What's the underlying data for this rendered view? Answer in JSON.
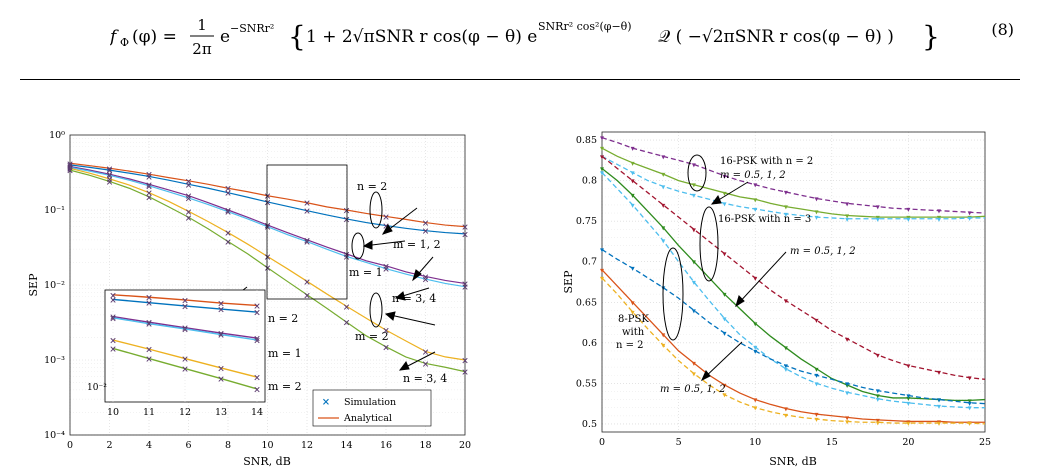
{
  "equation": {
    "number": "(8)",
    "lhs": "f",
    "lhs_sub": "Φ",
    "lhs_arg": "(φ) =",
    "frac_num": "1",
    "frac_den": "2π",
    "exp_e": "e",
    "exp1": "−SNRr²",
    "brace_body_a": "1 + 2√πSNR r cos(φ − θ) e",
    "exp2": "SNRr² cos²(φ−θ)",
    "q_part": "𝒬 ( −√2πSNR r cos(φ − θ) )"
  },
  "chart_data": [
    {
      "type": "line",
      "xlabel": "SNR, dB",
      "ylabel": "SEP",
      "xlim": [
        0,
        20
      ],
      "ylim": [
        0.0001,
        1
      ],
      "yscale": "log",
      "xticks": [
        "0",
        "2",
        "4",
        "6",
        "8",
        "10",
        "12",
        "14",
        "16",
        "18",
        "20"
      ],
      "yticks": [
        "10⁻⁴",
        "10⁻³",
        "10⁻²",
        "10⁻¹",
        "10⁰"
      ],
      "grid": true,
      "legend": {
        "position": "bottom-right",
        "entries": [
          "Simulation",
          "Analytical"
        ]
      },
      "x": [
        0,
        1,
        2,
        3,
        4,
        5,
        6,
        7,
        8,
        9,
        10,
        11,
        12,
        13,
        14,
        15,
        16,
        17,
        18,
        19,
        20
      ],
      "series": [
        {
          "color": "#D95319",
          "values": [
            0.42,
            0.39,
            0.36,
            0.33,
            0.3,
            0.27,
            0.245,
            0.22,
            0.195,
            0.175,
            0.155,
            0.14,
            0.125,
            0.11,
            0.1,
            0.09,
            0.082,
            0.075,
            0.068,
            0.063,
            0.06
          ]
        },
        {
          "color": "#0072BD",
          "values": [
            0.4,
            0.37,
            0.34,
            0.31,
            0.28,
            0.25,
            0.22,
            0.195,
            0.17,
            0.148,
            0.128,
            0.112,
            0.098,
            0.086,
            0.076,
            0.068,
            0.062,
            0.057,
            0.053,
            0.05,
            0.048
          ]
        },
        {
          "color": "#7E2F8E",
          "values": [
            0.38,
            0.34,
            0.3,
            0.26,
            0.22,
            0.185,
            0.155,
            0.125,
            0.1,
            0.08,
            0.063,
            0.05,
            0.04,
            0.032,
            0.026,
            0.021,
            0.018,
            0.015,
            0.013,
            0.0115,
            0.0105
          ]
        },
        {
          "color": "#4DBEEE",
          "values": [
            0.37,
            0.33,
            0.29,
            0.25,
            0.21,
            0.175,
            0.145,
            0.118,
            0.095,
            0.076,
            0.06,
            0.047,
            0.038,
            0.03,
            0.024,
            0.02,
            0.0165,
            0.014,
            0.012,
            0.0105,
            0.0095
          ]
        },
        {
          "color": "#EDB120",
          "values": [
            0.36,
            0.31,
            0.26,
            0.215,
            0.17,
            0.13,
            0.096,
            0.07,
            0.05,
            0.035,
            0.024,
            0.0165,
            0.0112,
            0.0076,
            0.0052,
            0.0036,
            0.0025,
            0.0018,
            0.0013,
            0.0011,
            0.001
          ]
        },
        {
          "color": "#77AC30",
          "values": [
            0.34,
            0.29,
            0.24,
            0.195,
            0.15,
            0.11,
            0.08,
            0.056,
            0.038,
            0.026,
            0.017,
            0.0112,
            0.0074,
            0.0049,
            0.0032,
            0.0021,
            0.0015,
            0.0011,
            0.0009,
            0.0008,
            0.0007
          ]
        }
      ],
      "annotations": [
        "n = 2",
        "m = 1, 2",
        "m = 1",
        "n = 3, 4",
        "m = 2",
        "n = 3, 4"
      ],
      "inset": {
        "xticks": [
          "10",
          "11",
          "12",
          "13",
          "14"
        ],
        "ytick": "10⁻²",
        "labels": [
          "n = 2",
          "m = 1",
          "m = 2"
        ]
      }
    },
    {
      "type": "line",
      "xlabel": "SNR, dB",
      "ylabel": "SEP",
      "xlim": [
        0,
        25
      ],
      "ylim": [
        0.49,
        0.86
      ],
      "xticks": [
        "0",
        "5",
        "10",
        "15",
        "20",
        "25"
      ],
      "yticks": [
        "0.5",
        "0.55",
        "0.6",
        "0.65",
        "0.7",
        "0.75",
        "0.8",
        "0.85"
      ],
      "grid": true,
      "x": [
        0,
        1,
        2,
        3,
        4,
        5,
        6,
        7,
        8,
        9,
        10,
        11,
        12,
        13,
        14,
        15,
        16,
        17,
        18,
        19,
        20,
        21,
        22,
        23,
        24,
        25
      ],
      "series": [
        {
          "color": "#7E2F8E",
          "dashed": true,
          "values": [
            0.853,
            0.847,
            0.84,
            0.835,
            0.83,
            0.825,
            0.82,
            0.813,
            0.806,
            0.8,
            0.795,
            0.79,
            0.786,
            0.782,
            0.778,
            0.775,
            0.772,
            0.77,
            0.768,
            0.766,
            0.765,
            0.764,
            0.763,
            0.762,
            0.761,
            0.76
          ]
        },
        {
          "color": "#77AC30",
          "values": [
            0.84,
            0.83,
            0.822,
            0.815,
            0.808,
            0.8,
            0.795,
            0.79,
            0.785,
            0.78,
            0.777,
            0.772,
            0.768,
            0.765,
            0.762,
            0.759,
            0.757,
            0.756,
            0.755,
            0.755,
            0.755,
            0.755,
            0.755,
            0.755,
            0.755,
            0.756
          ]
        },
        {
          "color": "#4DBEEE",
          "dashed": true,
          "values": [
            0.83,
            0.82,
            0.81,
            0.8,
            0.793,
            0.787,
            0.782,
            0.777,
            0.772,
            0.768,
            0.765,
            0.762,
            0.759,
            0.757,
            0.755,
            0.754,
            0.753,
            0.753,
            0.753,
            0.753,
            0.753,
            0.753,
            0.753,
            0.753,
            0.754,
            0.754
          ]
        },
        {
          "color": "#A2142F",
          "dashed": true,
          "values": [
            0.83,
            0.815,
            0.8,
            0.785,
            0.77,
            0.755,
            0.74,
            0.725,
            0.71,
            0.695,
            0.68,
            0.665,
            0.652,
            0.64,
            0.628,
            0.615,
            0.605,
            0.595,
            0.585,
            0.578,
            0.572,
            0.568,
            0.564,
            0.56,
            0.557,
            0.555
          ]
        },
        {
          "color": "#2E8B1E",
          "values": [
            0.815,
            0.8,
            0.782,
            0.762,
            0.742,
            0.72,
            0.7,
            0.68,
            0.66,
            0.642,
            0.624,
            0.608,
            0.594,
            0.58,
            0.568,
            0.556,
            0.548,
            0.54,
            0.535,
            0.532,
            0.532,
            0.531,
            0.53,
            0.529,
            0.529,
            0.53
          ]
        },
        {
          "color": "#4DBEEE",
          "dashed": true,
          "values": [
            0.81,
            0.79,
            0.77,
            0.748,
            0.726,
            0.7,
            0.675,
            0.652,
            0.63,
            0.61,
            0.595,
            0.58,
            0.568,
            0.558,
            0.55,
            0.544,
            0.539,
            0.535,
            0.531,
            0.528,
            0.526,
            0.524,
            0.522,
            0.521,
            0.52,
            0.52
          ]
        },
        {
          "color": "#0072BD",
          "dashed": true,
          "values": [
            0.715,
            0.703,
            0.692,
            0.68,
            0.668,
            0.655,
            0.64,
            0.625,
            0.612,
            0.6,
            0.59,
            0.58,
            0.572,
            0.565,
            0.56,
            0.555,
            0.55,
            0.545,
            0.541,
            0.538,
            0.535,
            0.532,
            0.53,
            0.528,
            0.526,
            0.525
          ]
        },
        {
          "color": "#D95319",
          "values": [
            0.69,
            0.67,
            0.65,
            0.63,
            0.61,
            0.59,
            0.575,
            0.56,
            0.548,
            0.538,
            0.53,
            0.524,
            0.519,
            0.515,
            0.512,
            0.51,
            0.508,
            0.506,
            0.505,
            0.504,
            0.503,
            0.503,
            0.503,
            0.502,
            0.502,
            0.502
          ]
        },
        {
          "color": "#EDB120",
          "dashed": true,
          "values": [
            0.68,
            0.66,
            0.638,
            0.617,
            0.597,
            0.578,
            0.562,
            0.548,
            0.536,
            0.527,
            0.52,
            0.515,
            0.511,
            0.508,
            0.506,
            0.504,
            0.503,
            0.502,
            0.502,
            0.501,
            0.501,
            0.501,
            0.501,
            0.501,
            0.501,
            0.5
          ]
        }
      ],
      "annotations": [
        "16-PSK with n = 2",
        "m = 0.5, 1, 2",
        "16-PSK with n = 3",
        "m = 0.5, 1, 2",
        "8-PSK",
        "with",
        "n = 2",
        "m = 0.5, 1, 2"
      ]
    }
  ]
}
